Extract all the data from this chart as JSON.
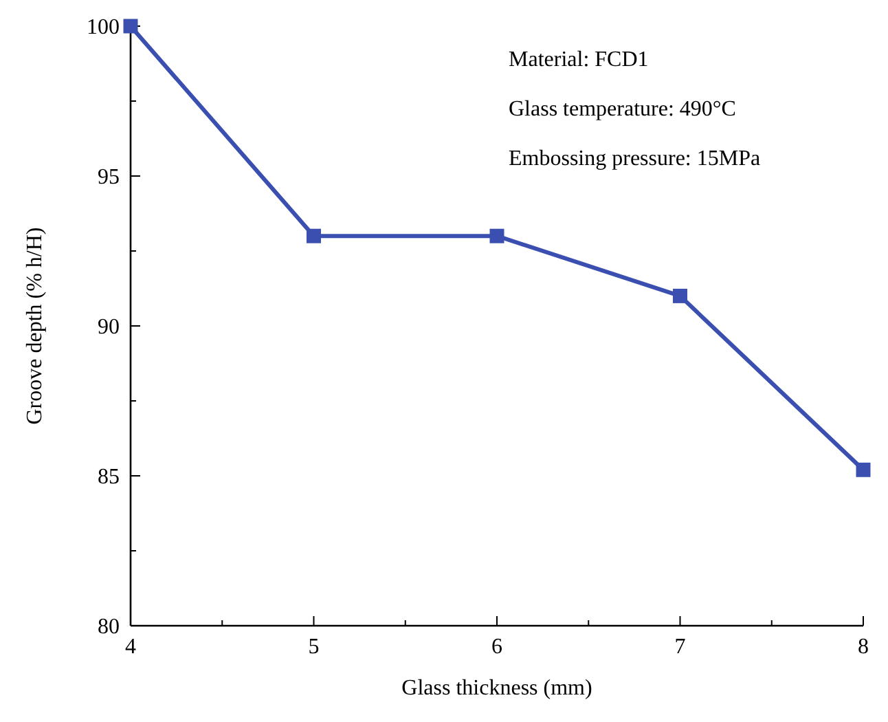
{
  "chart_data": {
    "type": "line",
    "xlabel": "Glass thickness (mm)",
    "ylabel": "Groove depth (% h/H)",
    "x": [
      4,
      5,
      6,
      7,
      8
    ],
    "series": [
      {
        "color": "#3a4fb0",
        "values": [
          100,
          93,
          93,
          91,
          85.2
        ]
      }
    ],
    "xlim": [
      4,
      8
    ],
    "xticks": [
      4,
      {
        "value": 4.5,
        "label": null
      },
      5,
      {
        "value": 5.5,
        "label": null
      },
      6,
      {
        "value": 6.5,
        "label": null
      },
      7,
      {
        "value": 7.5,
        "label": null
      },
      8
    ],
    "ylim": [
      80,
      100
    ],
    "yticks": [
      80,
      {
        "value": 82.5,
        "label": null
      },
      85,
      {
        "value": 87.5,
        "label": null
      },
      90,
      {
        "value": 92.5,
        "label": null
      },
      95,
      {
        "value": 97.5,
        "label": null
      },
      100
    ],
    "marker": "square",
    "line_style": "solid",
    "grid": false,
    "annotations": [
      "Material: FCD1",
      "Glass temperature: 490°C",
      "Embossing pressure: 15MPa"
    ]
  }
}
